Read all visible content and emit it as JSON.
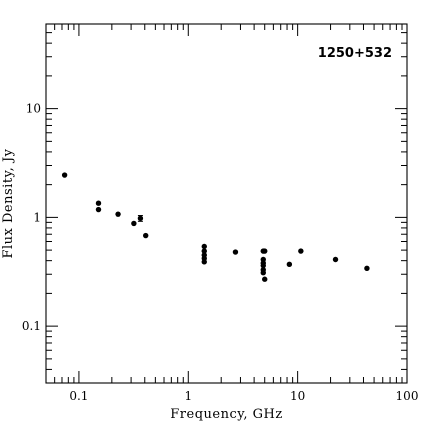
{
  "chart_data": {
    "type": "scatter",
    "title": "1250+532",
    "xlabel": "Frequency, GHz",
    "ylabel": "Flux Density, Jy",
    "x_scale": "log",
    "y_scale": "log",
    "xlim": [
      0.05,
      100
    ],
    "ylim": [
      0.03,
      60
    ],
    "x_ticks": [
      {
        "value": 0.1,
        "label": "0.1"
      },
      {
        "value": 1,
        "label": "1"
      },
      {
        "value": 10,
        "label": "10"
      },
      {
        "value": 100,
        "label": "100"
      }
    ],
    "y_ticks": [
      {
        "value": 0.1,
        "label": "0.1"
      },
      {
        "value": 1,
        "label": "1"
      },
      {
        "value": 10,
        "label": "10"
      }
    ],
    "grid": false,
    "legend": "none",
    "points": [
      {
        "x": 0.074,
        "y": 2.45
      },
      {
        "x": 0.151,
        "y": 1.35
      },
      {
        "x": 0.151,
        "y": 1.18
      },
      {
        "x": 0.228,
        "y": 1.07
      },
      {
        "x": 0.318,
        "y": 0.88
      },
      {
        "x": 0.365,
        "y": 0.98,
        "yerr": 0.06
      },
      {
        "x": 0.408,
        "y": 0.68
      },
      {
        "x": 1.4,
        "y": 0.54
      },
      {
        "x": 1.4,
        "y": 0.49
      },
      {
        "x": 1.4,
        "y": 0.45
      },
      {
        "x": 1.4,
        "y": 0.42
      },
      {
        "x": 1.4,
        "y": 0.39
      },
      {
        "x": 2.7,
        "y": 0.48
      },
      {
        "x": 4.85,
        "y": 0.49
      },
      {
        "x": 5.0,
        "y": 0.49
      },
      {
        "x": 4.85,
        "y": 0.41
      },
      {
        "x": 4.85,
        "y": 0.38
      },
      {
        "x": 4.85,
        "y": 0.36
      },
      {
        "x": 4.85,
        "y": 0.33
      },
      {
        "x": 4.85,
        "y": 0.31
      },
      {
        "x": 5.0,
        "y": 0.27
      },
      {
        "x": 8.4,
        "y": 0.37
      },
      {
        "x": 10.7,
        "y": 0.49
      },
      {
        "x": 22.2,
        "y": 0.41
      },
      {
        "x": 43,
        "y": 0.34
      }
    ],
    "marker_color": "#000000"
  }
}
